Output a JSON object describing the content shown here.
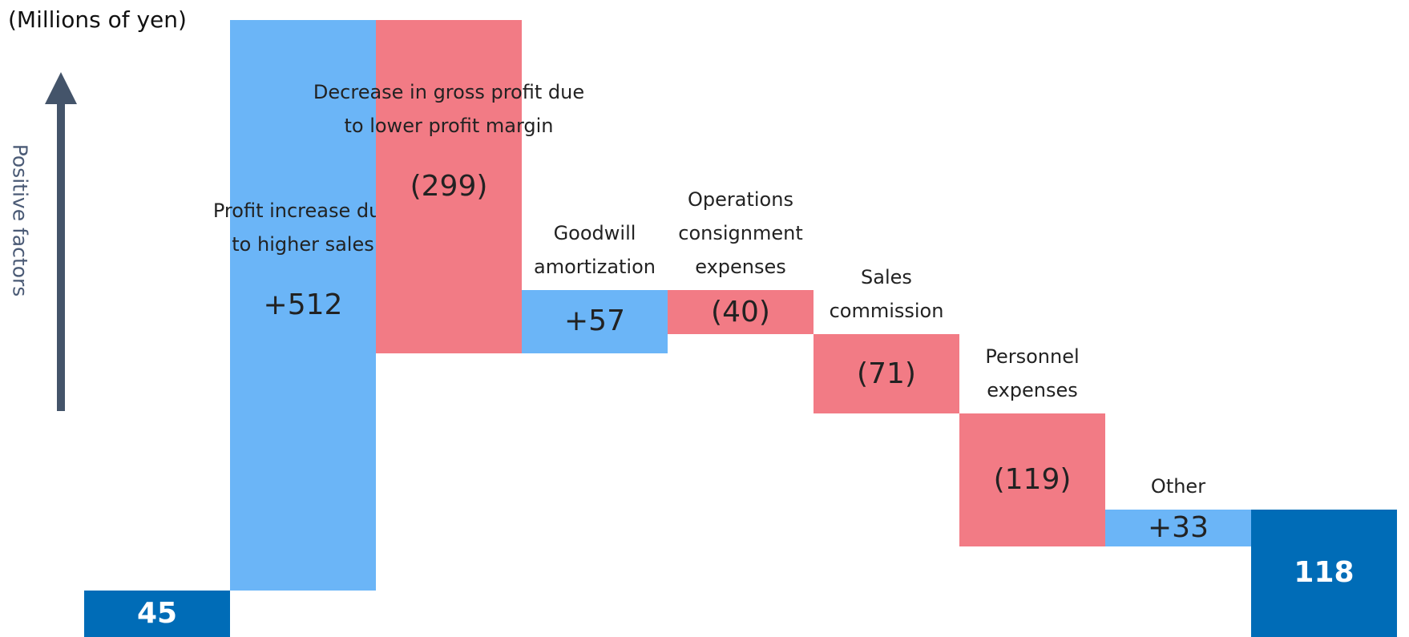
{
  "chart_data": {
    "type": "waterfall",
    "unit_label": "(Millions of yen)",
    "y_axis_label": "Positive factors",
    "categories": [
      null,
      "Profit increase due\nto higher sales",
      "Decrease in gross profit due\nto lower profit margin",
      "Goodwill\namortization",
      "Operations\nconsignment\nexpenses",
      "Sales\ncommission",
      "Personnel\nexpenses",
      "Other",
      null
    ],
    "values": [
      45,
      512,
      -299,
      57,
      -40,
      -71,
      -119,
      33,
      118
    ],
    "value_labels": [
      "45",
      "+512",
      "(299)",
      "+57",
      "(40)",
      "(71)",
      "(119)",
      "+33",
      "118"
    ],
    "measure": [
      "absolute",
      "relative",
      "relative",
      "relative",
      "relative",
      "relative",
      "relative",
      "relative",
      "absolute"
    ],
    "colors": {
      "total": "#006cb7",
      "increase": "#6bb5f7",
      "decrease": "#f27b85"
    },
    "ylim": [
      0,
      575
    ]
  }
}
